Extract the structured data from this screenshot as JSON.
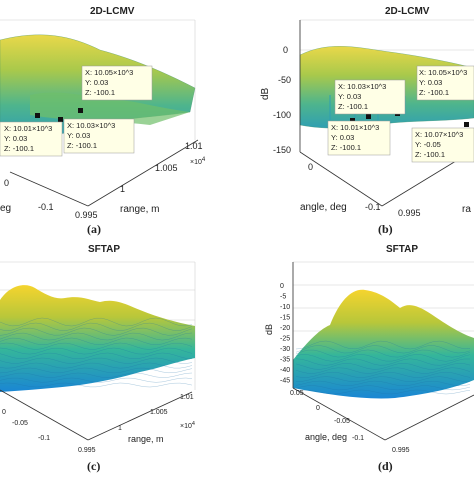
{
  "chart_data": [
    {
      "type": "surface3d",
      "panel": "a",
      "title": "2D-LCMV",
      "caption": "(a)",
      "xlabel": "range, m",
      "ylabel": "angle, deg",
      "x_ticks": [
        "0.995",
        "1",
        "1.005",
        "1.01"
      ],
      "x_exponent": "×10",
      "x_exponent_power": "4",
      "y_ticks": [
        "0",
        "-0.1"
      ],
      "datatips": [
        {
          "x": "X: 10.05×10^3",
          "y": "Y: 0.03",
          "z": "Z: -100.1"
        },
        {
          "x": "X: 10.01×10^3",
          "y": "Y: 0.03",
          "z": "Z: -100.1"
        },
        {
          "x": "X: 10.03×10^3",
          "y": "Y: 0.03",
          "z": "Z: -100.1"
        }
      ]
    },
    {
      "type": "surface3d",
      "panel": "b",
      "title": "2D-LCMV",
      "caption": "(b)",
      "zlabel": "dB",
      "xlabel": "ra",
      "ylabel": "angle, deg",
      "z_ticks": [
        "0",
        "-50",
        "-100",
        "-150"
      ],
      "x_ticks": [
        "0.995"
      ],
      "y_ticks": [
        "0",
        "-0.1"
      ],
      "datatips": [
        {
          "x": "X: 10.03×10^3",
          "y": "Y: 0.03",
          "z": "Z: -100.1"
        },
        {
          "x": "X: 10.05×10^3",
          "y": "Y: 0.03",
          "z": "Z: -100.1"
        },
        {
          "x": "X: 10.01×10^3",
          "y": "Y: 0.03",
          "z": "Z: -100.1"
        },
        {
          "x": "X: 10.07×10^3",
          "y": "Y: -0.05",
          "z": "Z: -100.1"
        }
      ]
    },
    {
      "type": "surface3d",
      "panel": "c",
      "title": "SFTAP",
      "caption": "(c)",
      "xlabel": "range, m",
      "x_ticks": [
        "0.995",
        "1",
        "1.005",
        "1.01"
      ],
      "x_exponent": "×10",
      "x_exponent_power": "4",
      "y_ticks": [
        "0",
        "-0.05",
        "-0.1"
      ]
    },
    {
      "type": "surface3d",
      "panel": "d",
      "title": "SFTAP",
      "caption": "(d)",
      "zlabel": "dB",
      "xlabel": "",
      "ylabel": "angle, deg",
      "z_ticks": [
        "0",
        "-5",
        "-10",
        "-15",
        "-20",
        "-25",
        "-30",
        "-35",
        "-40",
        "-45"
      ],
      "x_ticks": [
        "0.995"
      ],
      "y_ticks": [
        "0.05",
        "0",
        "-0.05",
        "-0.1"
      ]
    }
  ]
}
